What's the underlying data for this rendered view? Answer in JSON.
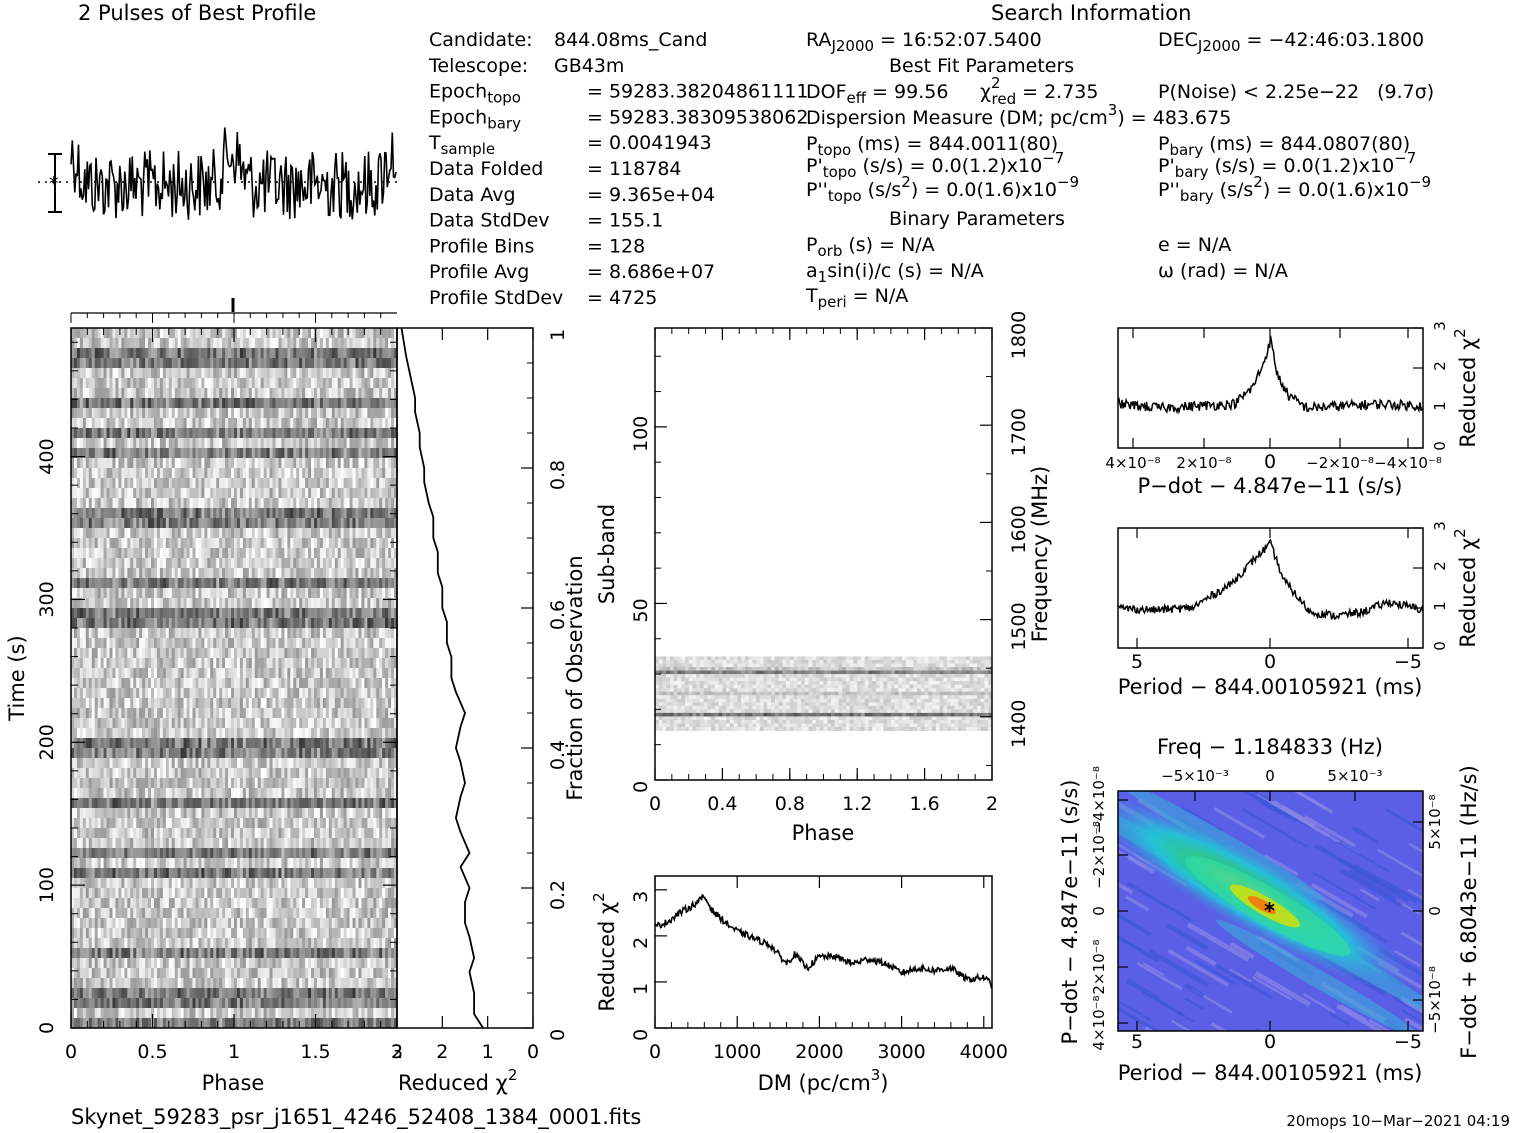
{
  "profile_panel": {
    "title": "2 Pulses of Best Profile"
  },
  "search_info": {
    "title": "Search Information"
  },
  "candidate_info": [
    {
      "key": "Candidate:",
      "eq": "",
      "val": "844.08ms_Cand"
    },
    {
      "key": "Telescope:",
      "eq": "",
      "val": "GB43m"
    },
    {
      "key": "Epoch",
      "sub": "topo",
      "eq": "=",
      "val": "59283.38204861111"
    },
    {
      "key": "Epoch",
      "sub": "bary",
      "eq": "=",
      "val": "59283.38309538062"
    },
    {
      "key": "T",
      "sub": "sample",
      "eq": "=",
      "val": "0.0041943"
    },
    {
      "key": "Data Folded",
      "eq": "=",
      "val": "118784"
    },
    {
      "key": "Data Avg",
      "eq": "=",
      "val": "9.365e+04"
    },
    {
      "key": "Data StdDev",
      "eq": "=",
      "val": "155.1"
    },
    {
      "key": "Profile Bins",
      "eq": "=",
      "val": "128"
    },
    {
      "key": "Profile Avg",
      "eq": "=",
      "val": "8.686e+07"
    },
    {
      "key": "Profile StdDev",
      "eq": "=",
      "val": "4725"
    }
  ],
  "search": {
    "ra": "RA",
    "ra_sub": "J2000",
    "ra_val": "= 16:52:07.5400",
    "dec": "DEC",
    "dec_sub": "J2000",
    "dec_val": "= −42:46:03.1800",
    "best_fit_header": "Best Fit Parameters",
    "dof": "DOF",
    "dof_sub": "eff",
    "dof_val": "= 99.56",
    "chi": "χ",
    "chi_sup": "2",
    "chi_sub": "red",
    "chi_val": "= 2.735",
    "pnoise": "P(Noise) < 2.25e−22",
    "sigma": "(9.7σ)",
    "dm_line": "Dispersion Measure (DM; pc/cm",
    "dm_sup": "3",
    "dm_val": ") = 483.675",
    "ptopo": "P",
    "ptopo_sub": "topo",
    "ptopo_val": "(ms)  =  844.0011(80)",
    "pbary": "P",
    "pbary_sub": "bary",
    "pbary_val": "(ms)  =  844.0807(80)",
    "pdtopo": "P'",
    "pdtopo_sub": "topo",
    "pdtopo_val": "(s/s) = 0.0(1.2)x10",
    "pdtopo_exp": "−7",
    "pdbary": "P'",
    "pdbary_sub": "bary",
    "pdbary_val": "(s/s) = 0.0(1.2)x10",
    "pdbary_exp": "−7",
    "pddtopo": "P''",
    "pddtopo_sub": "topo",
    "pddtopo_val": "(s/s",
    "pddtopo_sup": "2",
    "pddtopo_val2": ") = 0.0(1.6)x10",
    "pddtopo_exp": "−9",
    "pddbary": "P''",
    "pddbary_sub": "bary",
    "pddbary_val": "(s/s",
    "pddbary_sup": "2",
    "pddbary_val2": ") = 0.0(1.6)x10",
    "pddbary_exp": "−9",
    "binary_header": "Binary Parameters",
    "porb": "P",
    "porb_sub": "orb",
    "porb_val": "(s) = N/A",
    "e_val": "e = N/A",
    "a1": "a",
    "a1_sub": "1",
    "a1_val": "sin(i)/c (s) = N/A",
    "omega_val": "ω (rad) = N/A",
    "tperi": "T",
    "tperi_sub": "peri",
    "tperi_val": "= N/A"
  },
  "labels": {
    "time": "Time (s)",
    "phase": "Phase",
    "reduced_chi": "Reduced χ",
    "chi_sup": "2",
    "fraction": "Fraction of Observation",
    "subband": "Sub-band",
    "frequency": "Frequency (MHz)",
    "phase2": "Phase",
    "dm": "DM (pc/cm",
    "dm_sup": "3",
    "dm_close": ")",
    "reduced_chi_dm": "Reduced χ",
    "pdot": "P−dot − 4.847e−11 (s/s)",
    "period": "Period − 844.00105921 (ms)",
    "period2": "Period − 844.00105921 (ms)",
    "freq": "Freq − 1.184833 (Hz)",
    "pdot_left": "P−dot − 4.847e−11 (s/s)",
    "fdot_right": "F−dot + 6.8043e−11 (Hz/s)",
    "reduced_chi_r1": "Reduced χ",
    "reduced_chi_r2": "Reduced χ"
  },
  "ticks": {
    "time_y": [
      "0",
      "100",
      "200",
      "300",
      "400"
    ],
    "phase_x": [
      "0",
      "0.5",
      "1",
      "1.5",
      "2"
    ],
    "chi_x": [
      "3",
      "2",
      "1",
      "0"
    ],
    "fraction_y": [
      "0",
      "0.2",
      "0.4",
      "0.6",
      "0.8",
      "1"
    ],
    "subband_y": [
      "0",
      "50",
      "100"
    ],
    "freq_y": [
      "1400",
      "1500",
      "1600",
      "1700",
      "1800"
    ],
    "phase2_x": [
      "0",
      "0.4",
      "0.8",
      "1.2",
      "1.6",
      "2"
    ],
    "dm_x": [
      "0",
      "1000",
      "2000",
      "3000",
      "4000"
    ],
    "dm_y": [
      "0",
      "1",
      "2",
      "3"
    ],
    "pdot_x": [
      "4×10⁻⁸",
      "2×10⁻⁸",
      "0",
      "−2×10⁻⁸",
      "−4×10⁻⁸"
    ],
    "r_y": [
      "0",
      "1",
      "2",
      "3"
    ],
    "period_x": [
      "5",
      "0",
      "−5"
    ],
    "freq_top": [
      "−5×10⁻³",
      "0",
      "5×10⁻³"
    ],
    "contour_left": [
      "4×10⁻⁸",
      "2×10⁻⁸",
      "0",
      "−2×10⁻⁸",
      "−4×10⁻⁸"
    ],
    "contour_right": [
      "−5×10⁻⁸",
      "0",
      "5×10⁻⁸"
    ]
  },
  "footer": {
    "filename": "Skynet_59283_psr_j1651_4246_52408_1384_0001.fits",
    "stamp": "20mops 10−Mar−2021 04:19"
  },
  "chart_data": [
    {
      "type": "line",
      "name": "profile",
      "title": "2 Pulses of Best Profile",
      "x_range": [
        0,
        2
      ],
      "note_values": "approximate noisy pulse profile"
    },
    {
      "type": "heatmap",
      "name": "time-phase",
      "xlabel": "Phase",
      "ylabel": "Time (s)",
      "x_range": [
        0,
        2
      ],
      "y_range": [
        0,
        490
      ]
    },
    {
      "type": "line",
      "name": "chi-vs-time",
      "xlabel": "Reduced χ²",
      "ylabel": "Fraction of Observation",
      "xlim": [
        3,
        0
      ],
      "ylim": [
        0,
        1
      ],
      "x": [
        1.1,
        1.3,
        1.3,
        1.4,
        1.3,
        1.4,
        1.5,
        1.5,
        1.4,
        1.6,
        1.4,
        1.6,
        1.7,
        1.6,
        1.5,
        1.6,
        1.7,
        1.6,
        1.5,
        1.7,
        1.8,
        1.8,
        1.9,
        1.9,
        2.0,
        2.0,
        2.1,
        2.1,
        2.2,
        2.2,
        2.3,
        2.4,
        2.4,
        2.5,
        2.5,
        2.6,
        2.6,
        2.7,
        2.8,
        2.9
      ],
      "y": [
        0.0,
        0.02,
        0.05,
        0.08,
        0.1,
        0.13,
        0.15,
        0.18,
        0.2,
        0.23,
        0.25,
        0.28,
        0.3,
        0.33,
        0.35,
        0.38,
        0.4,
        0.43,
        0.45,
        0.48,
        0.5,
        0.53,
        0.55,
        0.58,
        0.6,
        0.63,
        0.65,
        0.68,
        0.7,
        0.73,
        0.75,
        0.78,
        0.8,
        0.83,
        0.85,
        0.88,
        0.9,
        0.93,
        0.96,
        1.0
      ]
    },
    {
      "type": "heatmap",
      "name": "subband-phase",
      "xlabel": "Phase",
      "ylabel": "Sub-band",
      "y2label": "Frequency (MHz)",
      "x_range": [
        0,
        2
      ],
      "ylim": [
        0,
        128
      ],
      "y2lim": [
        1335,
        1800
      ],
      "occupied_subbands": [
        14,
        35
      ]
    },
    {
      "type": "line",
      "name": "chi-vs-dm",
      "xlabel": "DM (pc/cm³)",
      "ylabel": "Reduced χ²",
      "xlim": [
        0,
        4100
      ],
      "ylim": [
        0,
        3.3
      ],
      "x": [
        0,
        150,
        300,
        450,
        600,
        700,
        850,
        1000,
        1200,
        1400,
        1600,
        1700,
        1850,
        2000,
        2200,
        2400,
        2600,
        2800,
        3000,
        3200,
        3400,
        3600,
        3800,
        4000,
        4100
      ],
      "y": [
        2.2,
        2.3,
        2.5,
        2.65,
        2.85,
        2.55,
        2.3,
        2.1,
        1.95,
        1.8,
        1.4,
        1.6,
        1.3,
        1.55,
        1.55,
        1.4,
        1.5,
        1.4,
        1.2,
        1.3,
        1.25,
        1.3,
        1.05,
        1.1,
        0.95
      ]
    },
    {
      "type": "line",
      "name": "chi-vs-pdot",
      "xlabel": "P−dot − 4.847e−11 (s/s)",
      "ylabel": "Reduced χ²",
      "xlim": [
        4.2e-08,
        -4.2e-08
      ],
      "ylim": [
        0,
        3
      ],
      "x": [
        4.2e-08,
        3e-08,
        2e-08,
        1e-08,
        5e-09,
        2e-09,
        0,
        -2e-09,
        -5e-09,
        -1e-08,
        -2e-08,
        -3e-08,
        -4.2e-08
      ],
      "y": [
        1.1,
        1.0,
        1.05,
        1.1,
        1.5,
        2.1,
        2.7,
        1.8,
        1.3,
        1.0,
        1.05,
        1.1,
        1.05
      ]
    },
    {
      "type": "line",
      "name": "chi-vs-period",
      "xlabel": "Period − 844.00105921 (ms)",
      "ylabel": "Reduced χ²",
      "xlim": [
        5.8,
        -5.8
      ],
      "ylim": [
        0,
        3
      ],
      "x": [
        5.8,
        4.5,
        3.0,
        1.5,
        0.5,
        0,
        -0.5,
        -1.5,
        -2.5,
        -3.5,
        -4.5,
        -5.8
      ],
      "y": [
        1.0,
        0.95,
        1.0,
        1.6,
        2.3,
        2.6,
        1.7,
        0.9,
        0.8,
        0.9,
        1.15,
        0.95
      ]
    },
    {
      "type": "heatmap",
      "name": "pdot-period",
      "xlabel": "Period − 844.00105921 (ms)",
      "ylabel": "P−dot − 4.847e−11 (s/s)",
      "x2label": "Freq − 1.184833 (Hz)",
      "y2label": "F−dot + 6.8043e−11 (Hz/s)",
      "xlim": [
        5.8,
        -5.8
      ],
      "ylim": [
        -4.5e-08,
        4.5e-08
      ],
      "peak": [
        0,
        0
      ]
    }
  ],
  "colors": {
    "ink": "#000000",
    "grid_bg": "#ffffff",
    "contour_low": "#8a7fd6",
    "contour_mid": "#27c8d6",
    "contour_high": "#f0a010",
    "peak": "#e02020"
  }
}
